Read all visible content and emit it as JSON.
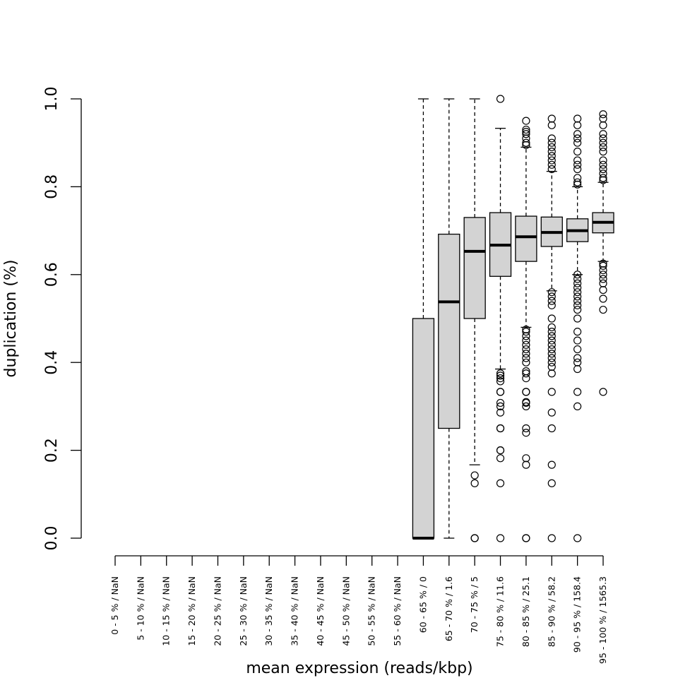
{
  "chart_data": {
    "type": "boxplot",
    "title": "",
    "xlabel": "mean expression (reads/kbp)",
    "ylabel": "duplication (%)",
    "ylim": [
      0,
      1
    ],
    "yticks": [
      "0.0",
      "0.2",
      "0.4",
      "0.6",
      "0.8",
      "1.0"
    ],
    "grid": false,
    "box_fill": "#d3d3d3",
    "categories": [
      "0 - 5 % / NaN",
      "5 - 10 % / NaN",
      "10 - 15 % / NaN",
      "15 - 20 % / NaN",
      "20 - 25 % / NaN",
      "25 - 30 % / NaN",
      "30 - 35 % / NaN",
      "35 - 40 % / NaN",
      "40 - 45 % / NaN",
      "45 - 50 % / NaN",
      "50 - 55 % / NaN",
      "55 - 60 % / NaN",
      "60 - 65 % / 0",
      "65 - 70 % / 1.6",
      "70 - 75 % / 5",
      "75 - 80 % / 11.6",
      "80 - 85 % / 25.1",
      "85 - 90 % / 58.2",
      "90 - 95 % / 158.4",
      "95 - 100 % / 1565.3"
    ],
    "boxes": [
      null,
      null,
      null,
      null,
      null,
      null,
      null,
      null,
      null,
      null,
      null,
      null,
      {
        "whisker_low": 0,
        "q1": 0,
        "median": 0,
        "q3": 0.5,
        "whisker_high": 1.0,
        "outliers": []
      },
      {
        "whisker_low": 0,
        "q1": 0.25,
        "median": 0.538,
        "q3": 0.692,
        "whisker_high": 1.0,
        "outliers": []
      },
      {
        "whisker_low": 0.167,
        "q1": 0.5,
        "median": 0.653,
        "q3": 0.73,
        "whisker_high": 1.0,
        "outliers": [
          0.143,
          0.125,
          0,
          0
        ]
      },
      {
        "whisker_low": 0.385,
        "q1": 0.596,
        "median": 0.667,
        "q3": 0.741,
        "whisker_high": 0.933,
        "outliers": [
          1.0,
          0.375,
          0.37,
          0.364,
          0.357,
          0.333,
          0.333,
          0.308,
          0.3,
          0.286,
          0.25,
          0.25,
          0.2,
          0.2,
          0.182,
          0.125,
          0
        ]
      },
      {
        "whisker_low": 0.48,
        "q1": 0.63,
        "median": 0.686,
        "q3": 0.733,
        "whisker_high": 0.89,
        "outliers": [
          0.95,
          0.93,
          0.925,
          0.92,
          0.91,
          0.9,
          0.895,
          0.475,
          0.47,
          0.46,
          0.45,
          0.44,
          0.43,
          0.42,
          0.41,
          0.4,
          0.38,
          0.375,
          0.364,
          0.333,
          0.333,
          0.31,
          0.308,
          0.3,
          0.25,
          0.24,
          0.182,
          0.167,
          0,
          0
        ]
      },
      {
        "whisker_low": 0.563,
        "q1": 0.664,
        "median": 0.696,
        "q3": 0.731,
        "whisker_high": 0.835,
        "outliers": [
          0.955,
          0.94,
          0.91,
          0.9,
          0.89,
          0.88,
          0.87,
          0.86,
          0.85,
          0.84,
          0.56,
          0.55,
          0.54,
          0.53,
          0.5,
          0.48,
          0.47,
          0.46,
          0.45,
          0.44,
          0.43,
          0.42,
          0.41,
          0.4,
          0.39,
          0.375,
          0.333,
          0.286,
          0.25,
          0.167,
          0.125,
          0
        ]
      },
      {
        "whisker_low": 0.6,
        "q1": 0.675,
        "median": 0.7,
        "q3": 0.727,
        "whisker_high": 0.8,
        "outliers": [
          0.955,
          0.94,
          0.92,
          0.91,
          0.9,
          0.88,
          0.86,
          0.85,
          0.84,
          0.82,
          0.81,
          0.805,
          0.6,
          0.59,
          0.58,
          0.57,
          0.56,
          0.55,
          0.54,
          0.53,
          0.52,
          0.5,
          0.47,
          0.45,
          0.43,
          0.41,
          0.4,
          0.385,
          0.333,
          0.3,
          0
        ]
      },
      {
        "whisker_low": 0.63,
        "q1": 0.695,
        "median": 0.719,
        "q3": 0.741,
        "whisker_high": 0.81,
        "outliers": [
          0.965,
          0.955,
          0.94,
          0.92,
          0.91,
          0.9,
          0.89,
          0.88,
          0.86,
          0.85,
          0.84,
          0.83,
          0.82,
          0.815,
          0.625,
          0.62,
          0.61,
          0.6,
          0.59,
          0.58,
          0.565,
          0.545,
          0.52,
          0.333
        ]
      }
    ]
  }
}
